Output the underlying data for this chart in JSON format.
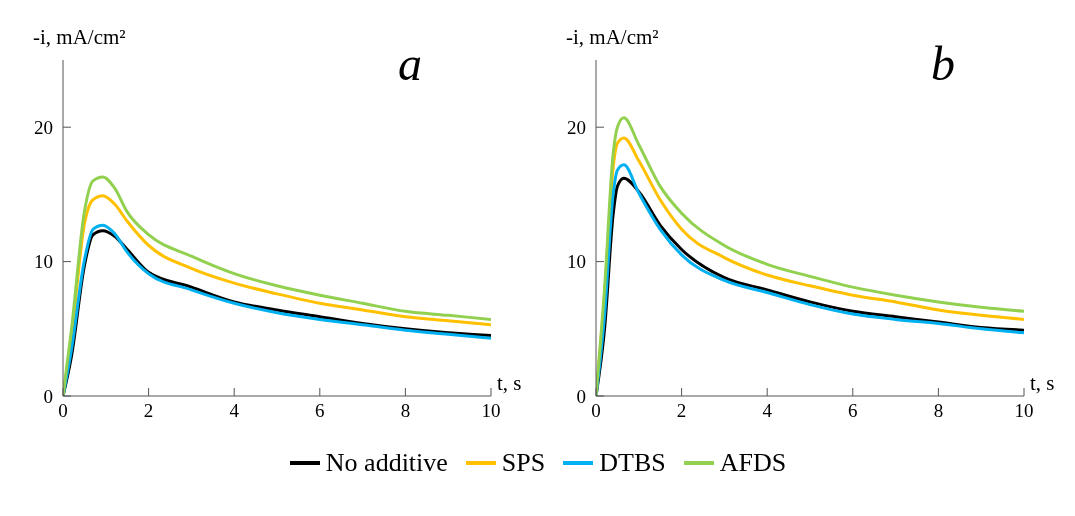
{
  "chart_data": [
    {
      "type": "line",
      "title": "a",
      "ylabel": "-i, mA/cm²",
      "xlabel": "t, s",
      "x": [
        0,
        0.2,
        0.5,
        0.7,
        0.93,
        1.2,
        1.5,
        2,
        3,
        4,
        5,
        6,
        7,
        8,
        9,
        10
      ],
      "xlim": [
        0,
        10
      ],
      "xticks": [
        0,
        2,
        4,
        6,
        8,
        10
      ],
      "ylim": [
        0,
        25
      ],
      "yticks": [
        0,
        10,
        20
      ],
      "grid": false,
      "marker": "none",
      "line_style": "solid",
      "legend": "bottom",
      "series": [
        {
          "name": "No additive",
          "color": "#000000",
          "values": [
            0,
            3,
            9.7,
            12.0,
            12.3,
            11.9,
            10.9,
            9.2,
            8.1,
            7.0,
            6.4,
            5.9,
            5.4,
            5.0,
            4.7,
            4.5
          ]
        },
        {
          "name": "SPS",
          "color": "#ffc000",
          "values": [
            0,
            4.5,
            12.8,
            14.6,
            14.9,
            14.3,
            13.0,
            11.2,
            9.5,
            8.4,
            7.6,
            6.9,
            6.4,
            5.9,
            5.6,
            5.3
          ]
        },
        {
          "name": "DTBS",
          "color": "#00b0f0",
          "values": [
            0,
            3.5,
            10.1,
            12.4,
            12.7,
            12.1,
            10.7,
            9.1,
            7.9,
            6.9,
            6.2,
            5.7,
            5.3,
            4.9,
            4.6,
            4.3
          ]
        },
        {
          "name": "AFDS",
          "color": "#92d050",
          "values": [
            0,
            5,
            13.7,
            16.0,
            16.3,
            15.5,
            13.7,
            12.0,
            10.4,
            9.1,
            8.2,
            7.5,
            6.9,
            6.3,
            6.0,
            5.7
          ]
        }
      ]
    },
    {
      "type": "line",
      "title": "b",
      "ylabel": "-i, mA/cm²",
      "xlabel": "t, s",
      "x": [
        0,
        0.2,
        0.4,
        0.5,
        0.65,
        1,
        1.5,
        2,
        3,
        4,
        5,
        6,
        7,
        8,
        9,
        10
      ],
      "xlim": [
        0,
        10
      ],
      "xticks": [
        0,
        2,
        4,
        6,
        8,
        10
      ],
      "ylim": [
        0,
        25
      ],
      "yticks": [
        0,
        10,
        20
      ],
      "grid": false,
      "marker": "none",
      "line_style": "solid",
      "series": [
        {
          "color": "#000000",
          "values": [
            0,
            5,
            13.5,
            15.6,
            16.2,
            15.2,
            12.7,
            10.9,
            8.8,
            7.9,
            7.0,
            6.3,
            5.9,
            5.5,
            5.1,
            4.9
          ]
        },
        {
          "color": "#ffc000",
          "values": [
            0,
            7.5,
            17,
            18.8,
            19.2,
            17.5,
            14.6,
            12.4,
            10.3,
            9.0,
            8.2,
            7.5,
            7.0,
            6.4,
            6.0,
            5.7
          ]
        },
        {
          "color": "#00b0f0",
          "values": [
            0,
            6,
            15,
            16.8,
            17.2,
            15.1,
            12.4,
            10.5,
            8.6,
            7.7,
            6.8,
            6.1,
            5.7,
            5.4,
            5.0,
            4.7
          ]
        },
        {
          "color": "#92d050",
          "values": [
            0,
            8,
            18,
            20,
            20.7,
            18.7,
            15.6,
            13.6,
            11.2,
            9.8,
            8.9,
            8.1,
            7.5,
            7.0,
            6.6,
            6.3
          ]
        }
      ]
    }
  ]
}
